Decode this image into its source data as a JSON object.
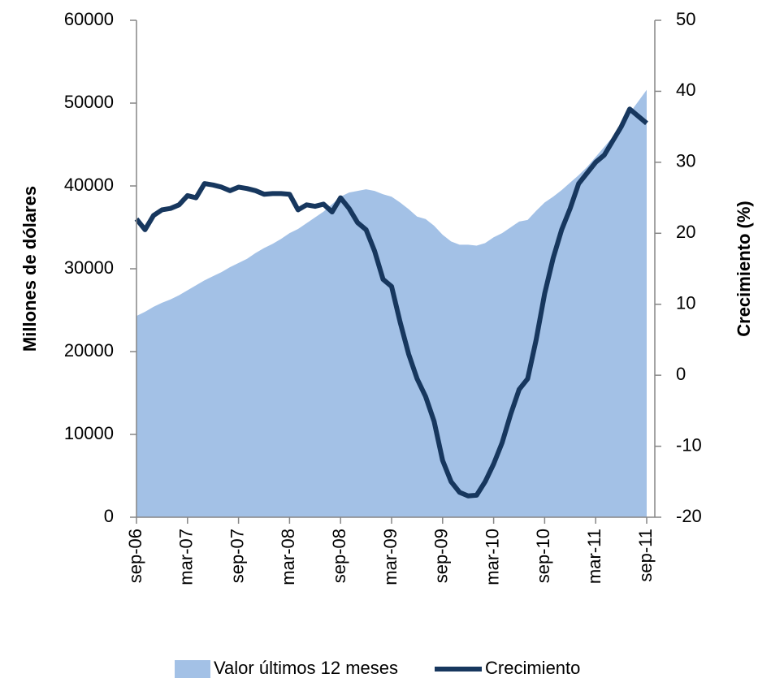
{
  "chart_data": {
    "type": "area-line",
    "categories": [
      "sep-06",
      null,
      null,
      null,
      null,
      null,
      "mar-07",
      null,
      null,
      null,
      null,
      null,
      "sep-07",
      null,
      null,
      null,
      null,
      null,
      "mar-08",
      null,
      null,
      null,
      null,
      null,
      "sep-08",
      null,
      null,
      null,
      null,
      null,
      "mar-09",
      null,
      null,
      null,
      null,
      null,
      "sep-09",
      null,
      null,
      null,
      null,
      null,
      "mar-10",
      null,
      null,
      null,
      null,
      null,
      "sep-10",
      null,
      null,
      null,
      null,
      null,
      "mar-11",
      null,
      null,
      null,
      null,
      null,
      "sep-11"
    ],
    "y_label": "Millones de dólares",
    "y2_label": "Crecimiento  (%)",
    "series": [
      {
        "name": "Valor últimos 12 meses",
        "color": "#a3c1e6",
        "kind": "area",
        "values": [
          24300,
          24800,
          25400,
          25900,
          26300,
          26800,
          27400,
          28000,
          28600,
          29100,
          29600,
          30200,
          30700,
          31200,
          31900,
          32500,
          33000,
          33600,
          34300,
          34800,
          35500,
          36200,
          36900,
          37800,
          38700,
          39200,
          39400,
          39600,
          39400,
          39000,
          38700,
          38000,
          37200,
          36300,
          36000,
          35200,
          34100,
          33300,
          32900,
          32900,
          32800,
          33100,
          33800,
          34300,
          35000,
          35700,
          35900,
          37000,
          38000,
          38700,
          39500,
          40400,
          41300,
          42300,
          43500,
          44700,
          45900,
          47300,
          48800,
          50200,
          51600
        ]
      },
      {
        "name": "Crecimiento",
        "color": "#17375e",
        "kind": "line",
        "axis": "y2",
        "values": [
          22,
          20.5,
          22.5,
          23.3,
          23.5,
          24,
          25.3,
          25,
          27,
          26.8,
          26.5,
          26,
          26.5,
          26.3,
          26,
          25.5,
          25.6,
          25.6,
          25.5,
          23.3,
          24,
          23.8,
          24.1,
          23,
          25,
          23.5,
          21.5,
          20.5,
          17.5,
          13.5,
          12.5,
          7.5,
          3,
          -0.5,
          -3,
          -6.5,
          -12,
          -15,
          -16.5,
          -17,
          -16.9,
          -15,
          -12.5,
          -9.5,
          -5.5,
          -2,
          -0.5,
          5,
          11.5,
          16.5,
          20.5,
          23.5,
          27,
          28.5,
          30,
          31,
          33,
          35,
          37.5,
          36.5,
          35.5
        ]
      }
    ],
    "ylim": [
      0,
      60000
    ],
    "yticks": [
      0,
      10000,
      20000,
      30000,
      40000,
      50000,
      60000
    ],
    "y2lim": [
      -20,
      50
    ],
    "y2ticks": [
      -20,
      -10,
      0,
      10,
      20,
      30,
      40,
      50
    ],
    "legend": "bottom"
  }
}
